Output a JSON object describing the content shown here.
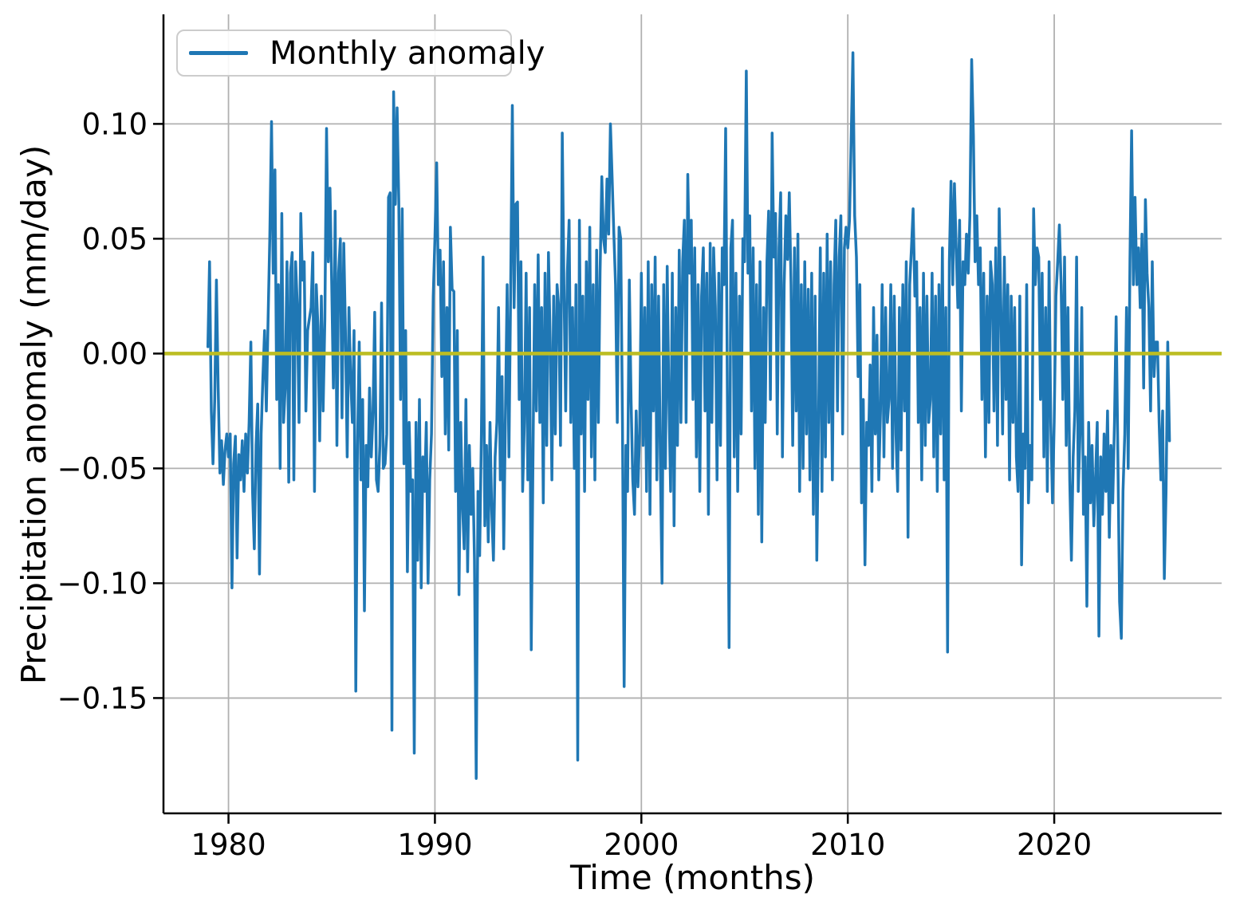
{
  "figure": {
    "background": "#ffffff"
  },
  "chart_data": {
    "type": "line",
    "title": "",
    "xlabel": "Time (months)",
    "ylabel": "Precipitation anomaly (mm/day)",
    "grid": true,
    "grid_color": "#b0b0b0",
    "legend": {
      "label": "Monthly anomaly",
      "position": "upper left"
    },
    "xlim": [
      1976.85,
      2028.11
    ],
    "ylim": [
      -0.2002,
      0.1477
    ],
    "x_ticks": [
      1980,
      1990,
      2000,
      2010,
      2020
    ],
    "x_tick_labels": [
      "1980",
      "1990",
      "2000",
      "2010",
      "2020"
    ],
    "y_ticks": [
      0.1,
      0.05,
      0.0,
      -0.05,
      -0.1,
      -0.15
    ],
    "y_tick_labels": [
      "0.10",
      "0.05",
      "0.00",
      "−0.05",
      "−0.10",
      "−0.15"
    ],
    "zero_line": {
      "y": 0.0,
      "color": "#bcbd22"
    },
    "x_start_year": 1979.0,
    "x_step_years": 0.083333,
    "series": [
      {
        "name": "Monthly anomaly",
        "color": "#1f77b4",
        "values": [
          0.003,
          0.04,
          -0.025,
          -0.048,
          -0.02,
          0.032,
          -0.015,
          -0.052,
          -0.038,
          -0.057,
          -0.042,
          -0.035,
          -0.045,
          -0.035,
          -0.102,
          -0.048,
          -0.036,
          -0.089,
          -0.044,
          -0.055,
          -0.038,
          -0.06,
          -0.035,
          -0.052,
          -0.03,
          0.005,
          -0.06,
          -0.085,
          -0.04,
          -0.022,
          -0.096,
          -0.035,
          -0.01,
          0.01,
          -0.025,
          0.015,
          0.05,
          0.101,
          0.035,
          0.08,
          -0.02,
          0.03,
          -0.05,
          0.061,
          -0.03,
          -0.015,
          0.04,
          -0.056,
          0.035,
          0.044,
          -0.055,
          0.04,
          0.021,
          -0.03,
          0.061,
          0.032,
          0.04,
          -0.025,
          0.01,
          0.015,
          0.02,
          0.044,
          -0.06,
          0.03,
          0.012,
          -0.038,
          0.025,
          -0.025,
          0.015,
          0.098,
          0.04,
          0.072,
          0.03,
          -0.015,
          0.062,
          -0.04,
          0.035,
          0.05,
          -0.028,
          0.048,
          0.01,
          -0.045,
          0.02,
          -0.01,
          -0.03,
          0.01,
          -0.147,
          -0.04,
          0.005,
          -0.055,
          -0.02,
          -0.112,
          -0.04,
          -0.058,
          -0.015,
          -0.045,
          -0.025,
          0.018,
          -0.055,
          -0.06,
          -0.04,
          0.022,
          -0.05,
          -0.048,
          -0.035,
          0.068,
          0.07,
          -0.164,
          0.114,
          0.065,
          0.107,
          0.066,
          -0.02,
          0.063,
          -0.048,
          0.01,
          -0.095,
          -0.03,
          -0.06,
          -0.055,
          -0.174,
          -0.03,
          -0.09,
          -0.02,
          -0.102,
          -0.045,
          -0.06,
          -0.03,
          -0.1,
          -0.055,
          -0.035,
          0.025,
          0.05,
          0.083,
          0.03,
          0.045,
          -0.01,
          0.04,
          -0.035,
          0.02,
          -0.042,
          0.055,
          0.028,
          0.027,
          -0.06,
          0.01,
          -0.105,
          -0.03,
          -0.065,
          -0.085,
          -0.02,
          -0.095,
          -0.04,
          -0.07,
          -0.05,
          -0.09,
          -0.185,
          -0.06,
          -0.088,
          -0.035,
          0.042,
          -0.075,
          -0.04,
          -0.082,
          -0.03,
          -0.068,
          -0.09,
          -0.045,
          -0.03,
          0.02,
          -0.055,
          -0.01,
          -0.085,
          -0.025,
          0.03,
          -0.045,
          0.025,
          0.108,
          0.02,
          0.065,
          0.066,
          -0.02,
          0.04,
          -0.06,
          -0.03,
          0.035,
          -0.055,
          0.02,
          -0.129,
          -0.045,
          0.03,
          -0.025,
          0.043,
          -0.03,
          0.02,
          -0.065,
          0.035,
          -0.04,
          0.044,
          0.005,
          -0.055,
          0.025,
          -0.035,
          0.03,
          0.02,
          -0.04,
          0.096,
          0.03,
          -0.025,
          0.035,
          0.058,
          -0.03,
          0.02,
          -0.05,
          0.03,
          -0.177,
          0.058,
          -0.035,
          0.025,
          -0.06,
          0.04,
          -0.02,
          0.055,
          -0.045,
          0.03,
          -0.055,
          0.045,
          -0.03,
          0.035,
          0.077,
          0.05,
          0.044,
          0.076,
          0.052,
          0.1,
          0.077,
          0.052,
          0.03,
          -0.03,
          0.055,
          0.05,
          -0.03,
          -0.145,
          -0.04,
          -0.06,
          0.032,
          -0.02,
          -0.055,
          -0.07,
          -0.025,
          -0.058,
          -0.035,
          0.035,
          -0.04,
          0.02,
          -0.06,
          0.04,
          -0.07,
          0.03,
          -0.025,
          0.042,
          -0.055,
          0.025,
          -0.045,
          -0.1,
          0.03,
          -0.05,
          0.038,
          -0.02,
          -0.06,
          0.035,
          -0.075,
          0.02,
          -0.04,
          0.045,
          -0.03,
          0.04,
          0.058,
          -0.03,
          0.078,
          0.035,
          0.058,
          -0.02,
          0.046,
          -0.045,
          0.03,
          -0.06,
          0.025,
          0.046,
          -0.025,
          0.035,
          -0.07,
          0.048,
          -0.03,
          0.046,
          0.02,
          -0.055,
          0.035,
          -0.04,
          0.046,
          0.03,
          0.098,
          -0.02,
          -0.128,
          0.046,
          0.058,
          -0.045,
          0.035,
          -0.06,
          0.025,
          -0.035,
          0.05,
          0.04,
          0.123,
          0.035,
          0.06,
          -0.025,
          0.046,
          -0.05,
          0.03,
          -0.07,
          0.04,
          -0.082,
          0.02,
          -0.03,
          0.04,
          0.062,
          -0.02,
          0.096,
          0.042,
          0.061,
          -0.035,
          0.046,
          0.07,
          -0.045,
          0.03,
          0.06,
          0.041,
          0.07,
          0.03,
          -0.04,
          0.046,
          -0.025,
          0.052,
          -0.06,
          0.03,
          -0.05,
          0.04,
          -0.035,
          0.028,
          -0.055,
          0.035,
          -0.07,
          0.025,
          -0.09,
          -0.03,
          0.046,
          -0.06,
          0.035,
          -0.045,
          0.052,
          -0.03,
          0.04,
          -0.055,
          0.03,
          0.058,
          -0.025,
          0.042,
          0.06,
          -0.035,
          0.046,
          0.055,
          0.046,
          0.058,
          0.095,
          0.131,
          0.06,
          0.042,
          -0.01,
          0.03,
          -0.065,
          -0.02,
          -0.092,
          -0.03,
          -0.04,
          -0.005,
          -0.06,
          0.02,
          -0.035,
          0.008,
          -0.055,
          -0.025,
          0.03,
          -0.045,
          0.02,
          -0.03,
          -0.02,
          0.03,
          -0.05,
          0.025,
          -0.035,
          -0.06,
          0.02,
          -0.042,
          0.03,
          -0.025,
          0.04,
          -0.08,
          0.03,
          0.046,
          0.063,
          0.025,
          0.04,
          -0.03,
          0.02,
          -0.055,
          0.035,
          -0.04,
          0.025,
          -0.03,
          -0.02,
          0.035,
          -0.045,
          0.025,
          -0.06,
          0.03,
          -0.035,
          0.046,
          -0.055,
          0.02,
          -0.13,
          0.04,
          0.075,
          0.03,
          0.074,
          0.046,
          0.02,
          0.058,
          -0.025,
          0.04,
          0.03,
          0.052,
          0.035,
          0.06,
          0.128,
          0.095,
          0.04,
          0.06,
          0.03,
          0.046,
          -0.02,
          0.035,
          -0.045,
          0.025,
          -0.03,
          0.04,
          0.03,
          -0.025,
          0.046,
          -0.04,
          0.063,
          0.02,
          -0.035,
          0.042,
          -0.02,
          0.03,
          -0.055,
          0.025,
          -0.03,
          0.02,
          -0.045,
          -0.06,
          0.025,
          -0.092,
          -0.035,
          -0.05,
          0.03,
          -0.065,
          -0.04,
          -0.055,
          0.063,
          0.03,
          0.046,
          0.042,
          -0.02,
          0.035,
          -0.045,
          0.02,
          -0.06,
          0.04,
          -0.03,
          -0.065,
          -0.03,
          0.025,
          0.04,
          0.056,
          0.03,
          -0.02,
          0.042,
          -0.04,
          0.02,
          -0.055,
          -0.09,
          -0.045,
          -0.025,
          0.042,
          -0.06,
          -0.035,
          0.02,
          -0.07,
          -0.045,
          -0.11,
          -0.03,
          -0.065,
          -0.04,
          -0.075,
          -0.055,
          -0.03,
          -0.123,
          -0.045,
          -0.07,
          -0.035,
          -0.06,
          -0.025,
          -0.08,
          -0.04,
          -0.065,
          -0.03,
          0.016,
          -0.045,
          -0.108,
          -0.124,
          -0.06,
          -0.035,
          0.02,
          -0.05,
          0.04,
          0.097,
          0.03,
          0.068,
          0.03,
          0.046,
          0.02,
          0.052,
          -0.015,
          0.067,
          0.035,
          0.02,
          -0.025,
          0.04,
          -0.01,
          0.005,
          0.005,
          -0.03,
          -0.055,
          -0.025,
          -0.098,
          -0.06,
          0.005,
          -0.038
        ]
      }
    ]
  }
}
